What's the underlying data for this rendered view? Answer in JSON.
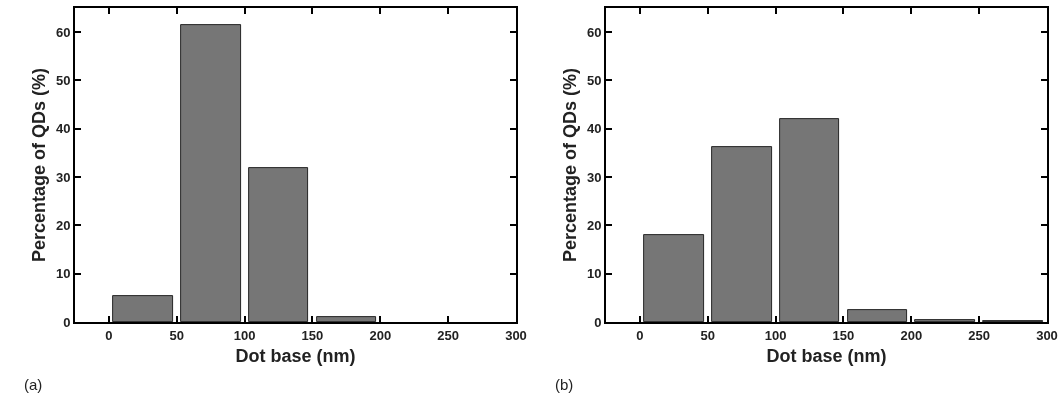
{
  "chart_data": [
    {
      "type": "histogram",
      "xlabel": "Dot base (nm)",
      "ylabel": "Percentage of QDs (%)",
      "annotations": [
        "(a)"
      ],
      "bins": [
        0,
        50,
        100,
        150,
        200
      ],
      "values": [
        5.3,
        61.5,
        31.8,
        1.0
      ],
      "color": "#767676",
      "xlim": [
        -25,
        300
      ],
      "ylim": [
        0,
        65
      ],
      "xticks": [
        0,
        50,
        100,
        150,
        200,
        250,
        300
      ],
      "yticks": [
        0,
        10,
        20,
        30,
        40,
        50,
        60
      ],
      "grid": false
    },
    {
      "type": "histogram",
      "xlabel": "Dot base (nm)",
      "ylabel": "Percentage of QDs (%)",
      "annotations": [
        "(b)"
      ],
      "bins": [
        0,
        50,
        100,
        150,
        200,
        250,
        300
      ],
      "values": [
        18.0,
        36.3,
        42.0,
        2.5,
        0.4,
        0.2
      ],
      "color": "#767676",
      "xlim": [
        -25,
        300
      ],
      "ylim": [
        0,
        65
      ],
      "xticks": [
        0,
        50,
        100,
        150,
        200,
        250,
        300
      ],
      "yticks": [
        0,
        10,
        20,
        30,
        40,
        50,
        60
      ],
      "grid": false
    }
  ]
}
